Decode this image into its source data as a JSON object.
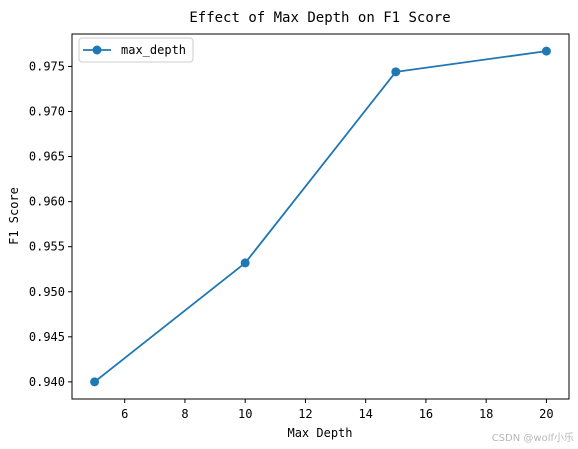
{
  "chart_data": {
    "type": "line",
    "title": "Effect of Max Depth on F1 Score",
    "xlabel": "Max Depth",
    "ylabel": "F1 Score",
    "x": [
      5,
      10,
      15,
      20
    ],
    "series": [
      {
        "name": "max_depth",
        "values": [
          0.94,
          0.9532,
          0.9744,
          0.9767
        ],
        "color": "#1f77b4",
        "marker": "circle"
      }
    ],
    "xlim": [
      4.25,
      20.75
    ],
    "ylim": [
      0.9381,
      0.9786
    ],
    "xticks": [
      6,
      8,
      10,
      12,
      14,
      16,
      18,
      20
    ],
    "yticks": [
      0.94,
      0.945,
      0.95,
      0.955,
      0.96,
      0.965,
      0.97,
      0.975
    ],
    "xtick_labels": [
      "6",
      "8",
      "10",
      "12",
      "14",
      "16",
      "18",
      "20"
    ],
    "ytick_labels": [
      "0.940",
      "0.945",
      "0.950",
      "0.955",
      "0.960",
      "0.965",
      "0.970",
      "0.975"
    ],
    "legend_position": "top-left",
    "grid": false
  },
  "watermark": "CSDN @wolf小乐"
}
